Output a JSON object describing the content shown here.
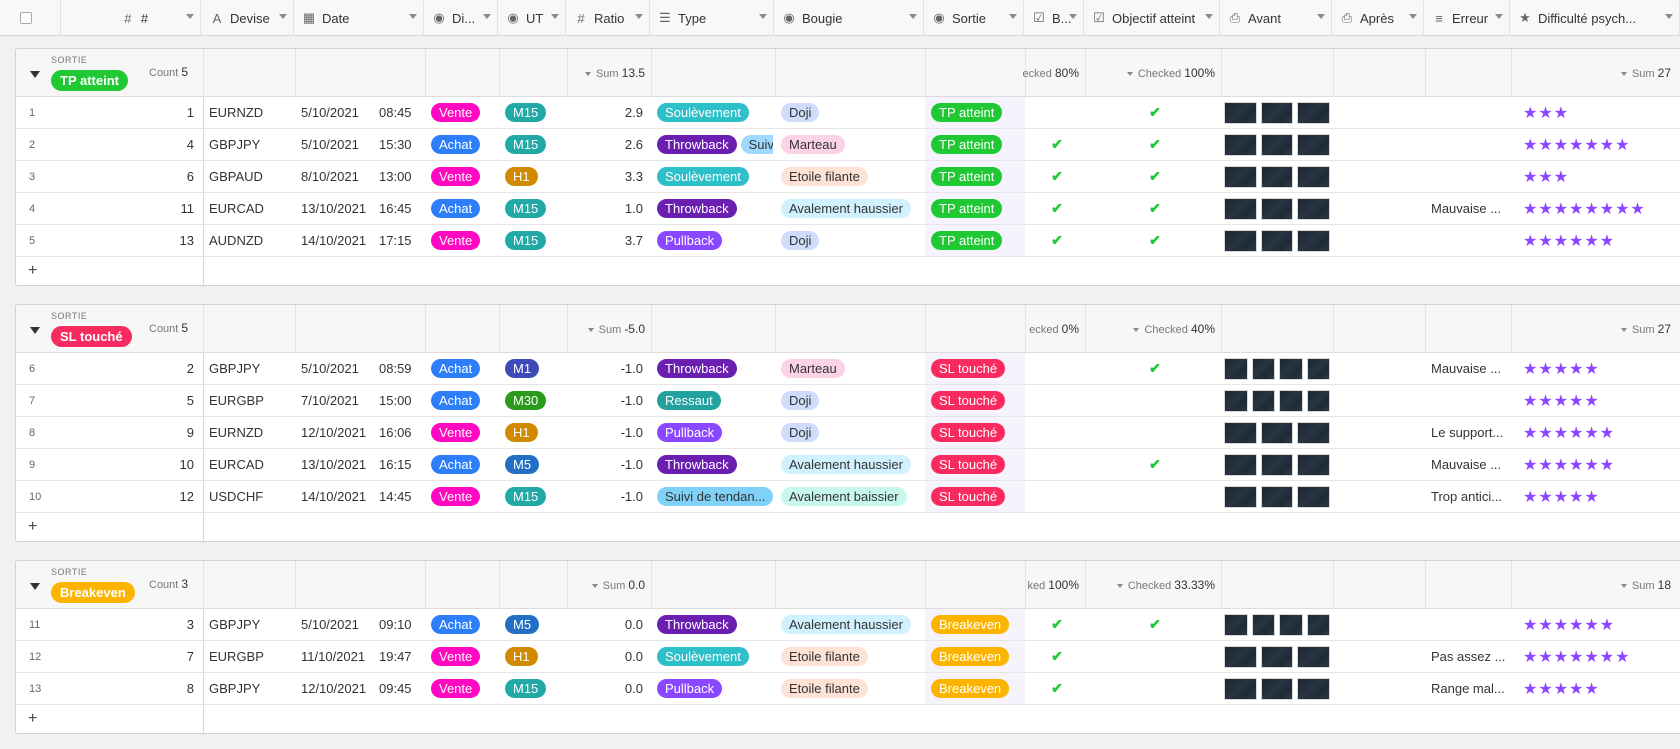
{
  "header": {
    "columns": [
      {
        "label": "#",
        "icon": "hash-icon",
        "glyph": "#"
      },
      {
        "label": "Devise",
        "icon": "text-icon",
        "glyph": "A"
      },
      {
        "label": "Date",
        "icon": "calendar-icon",
        "glyph": "▦"
      },
      {
        "label": "Di...",
        "icon": "single-select-icon",
        "glyph": "◉"
      },
      {
        "label": "UT",
        "icon": "single-select-icon",
        "glyph": "◉"
      },
      {
        "label": "Ratio",
        "icon": "hash-icon",
        "glyph": "#"
      },
      {
        "label": "Type",
        "icon": "multi-select-icon",
        "glyph": "☰"
      },
      {
        "label": "Bougie",
        "icon": "single-select-icon",
        "glyph": "◉"
      },
      {
        "label": "Sortie",
        "icon": "single-select-icon",
        "glyph": "◉"
      },
      {
        "label": "B...",
        "icon": "checkbox-icon",
        "glyph": "☑"
      },
      {
        "label": "Objectif atteint",
        "icon": "checkbox-icon",
        "glyph": "☑"
      },
      {
        "label": "Avant",
        "icon": "attachment-icon",
        "glyph": "⎙"
      },
      {
        "label": "Après",
        "icon": "attachment-icon",
        "glyph": "⎙"
      },
      {
        "label": "Erreur",
        "icon": "long-text-icon",
        "glyph": "≡"
      },
      {
        "label": "Difficulté psych...",
        "icon": "star-icon",
        "glyph": "★"
      }
    ]
  },
  "colors": {
    "Vente": "#ff08c2",
    "Achat": "#2d7ff9",
    "M15": "#20a9a5",
    "M1": "#3e4ab8",
    "M30": "#2a9b1b",
    "M5": "#2270c6",
    "H1": "#d18a00",
    "Soulèvement": "#2ec0c8",
    "Throwback": "#6b1fb1",
    "Pullback": "#8b46ff",
    "Ressaut": "#21a29e",
    "Suivi": "#9fd9ff",
    "Suivi de tendan...": "#7fd1f7",
    "Doji": "#d0dcfb",
    "Marteau": "#fcd3e4",
    "Etoile filante": "#fde2d5",
    "Avalement haussier": "#d1f1ff",
    "Avalement baissier": "#c8f7ec",
    "TP atteint": "#20c933",
    "SL touché": "#f82b60",
    "Breakeven": "#fcb400"
  },
  "groups": [
    {
      "label": "SORTIE",
      "badge": "TP atteint",
      "count_label": "Count",
      "count": "5",
      "sum_label": "Sum",
      "ratio_sum": "13.5",
      "b_label": "ecked",
      "b_pct": "80%",
      "obj_label": "Checked",
      "obj_pct": "100%",
      "diff_label": "Sum",
      "diff_sum": "27",
      "rows": [
        {
          "n": "1",
          "id": "1",
          "devise": "EURNZD",
          "date": "5/10/2021",
          "time": "08:45",
          "dir": "Vente",
          "ut": "M15",
          "ratio": "2.9",
          "type": [
            "Soulèvement"
          ],
          "bougie": "Doji",
          "sortie": "TP atteint",
          "b": false,
          "obj": true,
          "avant": 3,
          "apres": 0,
          "erreur": "",
          "stars": 3
        },
        {
          "n": "2",
          "id": "4",
          "devise": "GBPJPY",
          "date": "5/10/2021",
          "time": "15:30",
          "dir": "Achat",
          "ut": "M15",
          "ratio": "2.6",
          "type": [
            "Throwback",
            "Suivi"
          ],
          "bougie": "Marteau",
          "sortie": "TP atteint",
          "b": true,
          "obj": true,
          "avant": 3,
          "apres": 0,
          "erreur": "",
          "stars": 7
        },
        {
          "n": "3",
          "id": "6",
          "devise": "GBPAUD",
          "date": "8/10/2021",
          "time": "13:00",
          "dir": "Vente",
          "ut": "H1",
          "ratio": "3.3",
          "type": [
            "Soulèvement"
          ],
          "bougie": "Etoile filante",
          "sortie": "TP atteint",
          "b": true,
          "obj": true,
          "avant": 3,
          "apres": 0,
          "erreur": "",
          "stars": 3
        },
        {
          "n": "4",
          "id": "11",
          "devise": "EURCAD",
          "date": "13/10/2021",
          "time": "16:45",
          "dir": "Achat",
          "ut": "M15",
          "ratio": "1.0",
          "type": [
            "Throwback"
          ],
          "bougie": "Avalement haussier",
          "sortie": "TP atteint",
          "b": true,
          "obj": true,
          "avant": 3,
          "apres": 0,
          "erreur": "Mauvaise ...",
          "stars": 8
        },
        {
          "n": "5",
          "id": "13",
          "devise": "AUDNZD",
          "date": "14/10/2021",
          "time": "17:15",
          "dir": "Vente",
          "ut": "M15",
          "ratio": "3.7",
          "type": [
            "Pullback"
          ],
          "bougie": "Doji",
          "sortie": "TP atteint",
          "b": true,
          "obj": true,
          "avant": 3,
          "apres": 0,
          "erreur": "",
          "stars": 6
        }
      ]
    },
    {
      "label": "SORTIE",
      "badge": "SL touché",
      "count_label": "Count",
      "count": "5",
      "sum_label": "Sum",
      "ratio_sum": "-5.0",
      "b_label": "ecked",
      "b_pct": "0%",
      "obj_label": "Checked",
      "obj_pct": "40%",
      "diff_label": "Sum",
      "diff_sum": "27",
      "rows": [
        {
          "n": "6",
          "id": "2",
          "devise": "GBPJPY",
          "date": "5/10/2021",
          "time": "08:59",
          "dir": "Achat",
          "ut": "M1",
          "ratio": "-1.0",
          "type": [
            "Throwback"
          ],
          "bougie": "Marteau",
          "sortie": "SL touché",
          "b": false,
          "obj": true,
          "avant": 4,
          "apres": 0,
          "erreur": "Mauvaise ...",
          "stars": 5
        },
        {
          "n": "7",
          "id": "5",
          "devise": "EURGBP",
          "date": "7/10/2021",
          "time": "15:00",
          "dir": "Achat",
          "ut": "M30",
          "ratio": "-1.0",
          "type": [
            "Ressaut"
          ],
          "bougie": "Doji",
          "sortie": "SL touché",
          "b": false,
          "obj": false,
          "avant": 4,
          "apres": 0,
          "erreur": "",
          "stars": 5
        },
        {
          "n": "8",
          "id": "9",
          "devise": "EURNZD",
          "date": "12/10/2021",
          "time": "16:06",
          "dir": "Vente",
          "ut": "H1",
          "ratio": "-1.0",
          "type": [
            "Pullback"
          ],
          "bougie": "Doji",
          "sortie": "SL touché",
          "b": false,
          "obj": false,
          "avant": 3,
          "apres": 0,
          "erreur": "Le support...",
          "stars": 6
        },
        {
          "n": "9",
          "id": "10",
          "devise": "EURCAD",
          "date": "13/10/2021",
          "time": "16:15",
          "dir": "Achat",
          "ut": "M5",
          "ratio": "-1.0",
          "type": [
            "Throwback"
          ],
          "bougie": "Avalement haussier",
          "sortie": "SL touché",
          "b": false,
          "obj": true,
          "avant": 3,
          "apres": 0,
          "erreur": "Mauvaise ...",
          "stars": 6
        },
        {
          "n": "10",
          "id": "12",
          "devise": "USDCHF",
          "date": "14/10/2021",
          "time": "14:45",
          "dir": "Vente",
          "ut": "M15",
          "ratio": "-1.0",
          "type": [
            "Suivi de tendan..."
          ],
          "bougie": "Avalement baissier",
          "sortie": "SL touché",
          "b": false,
          "obj": false,
          "avant": 3,
          "apres": 0,
          "erreur": "Trop antici...",
          "stars": 5
        }
      ]
    },
    {
      "label": "SORTIE",
      "badge": "Breakeven",
      "count_label": "Count",
      "count": "3",
      "sum_label": "Sum",
      "ratio_sum": "0.0",
      "b_label": "ked",
      "b_pct": "100%",
      "obj_label": "Checked",
      "obj_pct": "33.33%",
      "diff_label": "Sum",
      "diff_sum": "18",
      "rows": [
        {
          "n": "11",
          "id": "3",
          "devise": "GBPJPY",
          "date": "5/10/2021",
          "time": "09:10",
          "dir": "Achat",
          "ut": "M5",
          "ratio": "0.0",
          "type": [
            "Throwback"
          ],
          "bougie": "Avalement haussier",
          "sortie": "Breakeven",
          "b": true,
          "obj": true,
          "avant": 4,
          "apres": 0,
          "erreur": "",
          "stars": 6
        },
        {
          "n": "12",
          "id": "7",
          "devise": "EURGBP",
          "date": "11/10/2021",
          "time": "19:47",
          "dir": "Vente",
          "ut": "H1",
          "ratio": "0.0",
          "type": [
            "Soulèvement"
          ],
          "bougie": "Etoile filante",
          "sortie": "Breakeven",
          "b": true,
          "obj": false,
          "avant": 3,
          "apres": 0,
          "erreur": "Pas assez ...",
          "stars": 7
        },
        {
          "n": "13",
          "id": "8",
          "devise": "GBPJPY",
          "date": "12/10/2021",
          "time": "09:45",
          "dir": "Vente",
          "ut": "M15",
          "ratio": "0.0",
          "type": [
            "Pullback"
          ],
          "bougie": "Etoile filante",
          "sortie": "Breakeven",
          "b": true,
          "obj": false,
          "avant": 3,
          "apres": 0,
          "erreur": "Range mal...",
          "stars": 5
        }
      ]
    }
  ]
}
